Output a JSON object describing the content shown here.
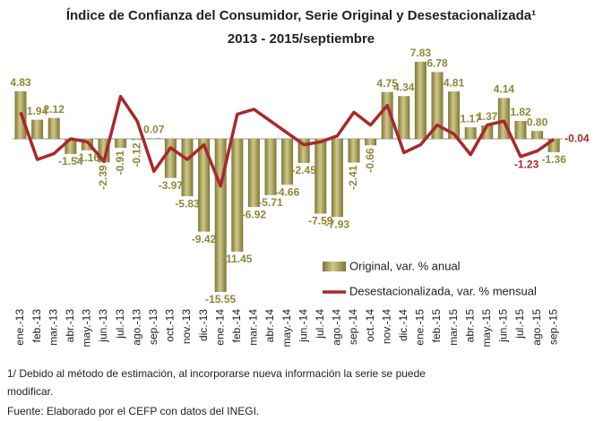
{
  "chart_data": {
    "type": "bar_line",
    "title": "Índice de Confianza del Consumidor, Serie Original y Desestacionalizada¹",
    "subtitle": "2013 - 2015/septiembre",
    "categories": [
      "ene.-13",
      "feb.-13",
      "mar.-13",
      "abr.-13",
      "may.-13",
      "jun.-13",
      "jul.-13",
      "ago.-13",
      "sep.-13",
      "oct.-13",
      "nov.-13",
      "dic.-13",
      "ene.-14",
      "feb.-14",
      "mar.-14",
      "abr.-14",
      "may.-14",
      "jun.-14",
      "jul.-14",
      "ago.-14",
      "sep.-14",
      "oct.-14",
      "nov.-14",
      "dic.-14",
      "ene.-15",
      "feb.-15",
      "mar.-15",
      "abr.-15",
      "may.-15",
      "jun.-15",
      "jul.-15",
      "ago.-15",
      "sep.-15"
    ],
    "ylim": [
      -16,
      8
    ],
    "y2lim": [
      -16,
      8
    ],
    "series": [
      {
        "name": "Original, var. % anual",
        "color": "#a39c4e",
        "label_color": "#8e8838",
        "values": [
          4.83,
          1.94,
          2.12,
          -1.54,
          -1.16,
          -2.39,
          -0.91,
          -0.12,
          0.07,
          -3.97,
          -5.83,
          -9.42,
          -15.55,
          -11.45,
          -6.92,
          -5.71,
          -4.66,
          -2.45,
          -7.59,
          -7.93,
          -2.41,
          -0.66,
          4.75,
          4.34,
          7.83,
          6.78,
          4.81,
          1.17,
          1.37,
          4.14,
          1.82,
          0.8,
          -1.36
        ],
        "value_labels": [
          "4.83",
          "1.94",
          "2.12",
          "-1.54",
          "-1.16",
          "-2.39",
          "-0.91",
          "-0.12",
          "0.07",
          "-3.97",
          "-5.83",
          "-9.42",
          "-15.55",
          "-11.45",
          "-6.92",
          "-5.71",
          "-4.66",
          "-2.45",
          "-7.59",
          "-7.93",
          "-2.41",
          "-0.66",
          "4.75",
          "4.34",
          "7.83",
          "6.78",
          "4.81",
          "1.17",
          "1.37",
          "4.14",
          "1.82",
          "0.80",
          "-1.36"
        ]
      },
      {
        "name": "Desestacionalizada, var. % mensual",
        "color": "#a8292b",
        "axis": "y2",
        "values": [
          2.7,
          -2.1,
          -1.5,
          0,
          -0.3,
          -2.3,
          4.3,
          1.8,
          -3.3,
          -0.9,
          -2.1,
          -0.6,
          -4.8,
          2.5,
          3.0,
          1.8,
          0.6,
          -0.6,
          -0.3,
          0.3,
          2.7,
          1.4,
          3.4,
          -1.4,
          -0.6,
          1.4,
          0.5,
          -1.6,
          1.4,
          1.8,
          -1.8,
          -1.23,
          -0.04
        ],
        "value_labels": [
          null,
          null,
          null,
          null,
          null,
          null,
          null,
          null,
          null,
          null,
          null,
          null,
          null,
          null,
          null,
          null,
          null,
          null,
          null,
          null,
          null,
          null,
          null,
          null,
          null,
          null,
          null,
          null,
          null,
          null,
          null,
          "-1.23",
          "-0.04"
        ]
      }
    ],
    "footnotes": [
      "1/ Debido al método de estimación, al incorporarse nueva información la serie se puede",
      "modificar.",
      "Fuente: Elaborado por el CEFP con datos del INEGI."
    ]
  }
}
